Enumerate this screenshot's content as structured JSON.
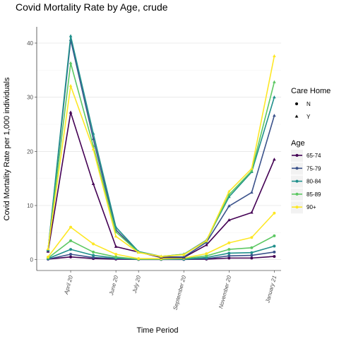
{
  "chart_data": {
    "type": "line",
    "title": "Covid Mortality Rate by Age, crude",
    "xlabel": "Time Period",
    "ylabel": "Covid Mortality Rate per 1,000 individuals",
    "x_ticks": [
      "April 20",
      "June 20",
      "July 20",
      "September 20",
      "November 20",
      "January 21"
    ],
    "x_tick_months": [
      3,
      5,
      6,
      8,
      10,
      12
    ],
    "x_months": [
      2,
      3,
      4,
      5,
      6,
      7,
      8,
      9,
      10,
      11,
      12
    ],
    "xlim_months": [
      1.5,
      12.3
    ],
    "y_ticks": [
      0,
      10,
      20,
      30,
      40
    ],
    "ylim": [
      -2,
      43
    ],
    "grid": true,
    "legend_position": "right",
    "legend_shape": {
      "title": "Care Home",
      "entries": [
        {
          "label": "N",
          "shape": "circle"
        },
        {
          "label": "Y",
          "shape": "triangle"
        }
      ]
    },
    "legend_color": {
      "title": "Age",
      "entries": [
        {
          "label": "65-74",
          "color": "#440154"
        },
        {
          "label": "75-79",
          "color": "#3B528B"
        },
        {
          "label": "80-84",
          "color": "#21908C"
        },
        {
          "label": "85-89",
          "color": "#5DC863"
        },
        {
          "label": "90+",
          "color": "#FDE725"
        }
      ]
    },
    "series": [
      {
        "age": "65-74",
        "care_home": "N",
        "color": "#440154",
        "values": [
          0.1,
          0.5,
          0.2,
          0.1,
          0.05,
          0.05,
          0.05,
          0.1,
          0.3,
          0.3,
          0.6
        ]
      },
      {
        "age": "75-79",
        "care_home": "N",
        "color": "#3B528B",
        "values": [
          0.1,
          1.0,
          0.4,
          0.2,
          0.05,
          0.05,
          0.05,
          0.2,
          0.7,
          0.8,
          1.4
        ]
      },
      {
        "age": "80-84",
        "care_home": "N",
        "color": "#21908C",
        "values": [
          0.2,
          1.9,
          0.8,
          0.3,
          0.1,
          0.1,
          0.1,
          0.4,
          1.2,
          1.3,
          2.5
        ]
      },
      {
        "age": "85-89",
        "care_home": "N",
        "color": "#5DC863",
        "values": [
          0.3,
          3.5,
          1.4,
          0.5,
          0.1,
          0.1,
          0.2,
          0.7,
          1.9,
          2.2,
          4.4
        ]
      },
      {
        "age": "90+",
        "care_home": "N",
        "color": "#FDE725",
        "values": [
          0.5,
          6.0,
          2.9,
          1.0,
          0.2,
          0.2,
          0.3,
          1.1,
          3.1,
          4.1,
          8.6
        ]
      },
      {
        "age": "65-74",
        "care_home": "Y",
        "color": "#440154",
        "values": [
          1.5,
          27.2,
          14.0,
          2.4,
          1.4,
          0.4,
          0.4,
          2.7,
          7.3,
          8.7,
          18.5
        ]
      },
      {
        "age": "75-79",
        "care_home": "Y",
        "color": "#3B528B",
        "values": [
          1.7,
          40.6,
          22.3,
          5.5,
          1.4,
          0.5,
          0.5,
          3.2,
          9.9,
          12.4,
          26.6
        ]
      },
      {
        "age": "80-84",
        "care_home": "Y",
        "color": "#21908C",
        "values": [
          1.8,
          41.3,
          23.3,
          6.0,
          1.5,
          0.6,
          1.0,
          3.6,
          11.6,
          16.2,
          30.0
        ]
      },
      {
        "age": "85-89",
        "care_home": "Y",
        "color": "#5DC863",
        "values": [
          1.9,
          36.3,
          21.0,
          5.1,
          1.4,
          0.6,
          1.0,
          3.4,
          12.0,
          16.4,
          32.8
        ]
      },
      {
        "age": "90+",
        "care_home": "Y",
        "color": "#FDE725",
        "values": [
          2.0,
          32.1,
          20.4,
          4.3,
          1.3,
          0.6,
          0.9,
          3.5,
          12.6,
          16.8,
          37.6
        ]
      }
    ]
  }
}
